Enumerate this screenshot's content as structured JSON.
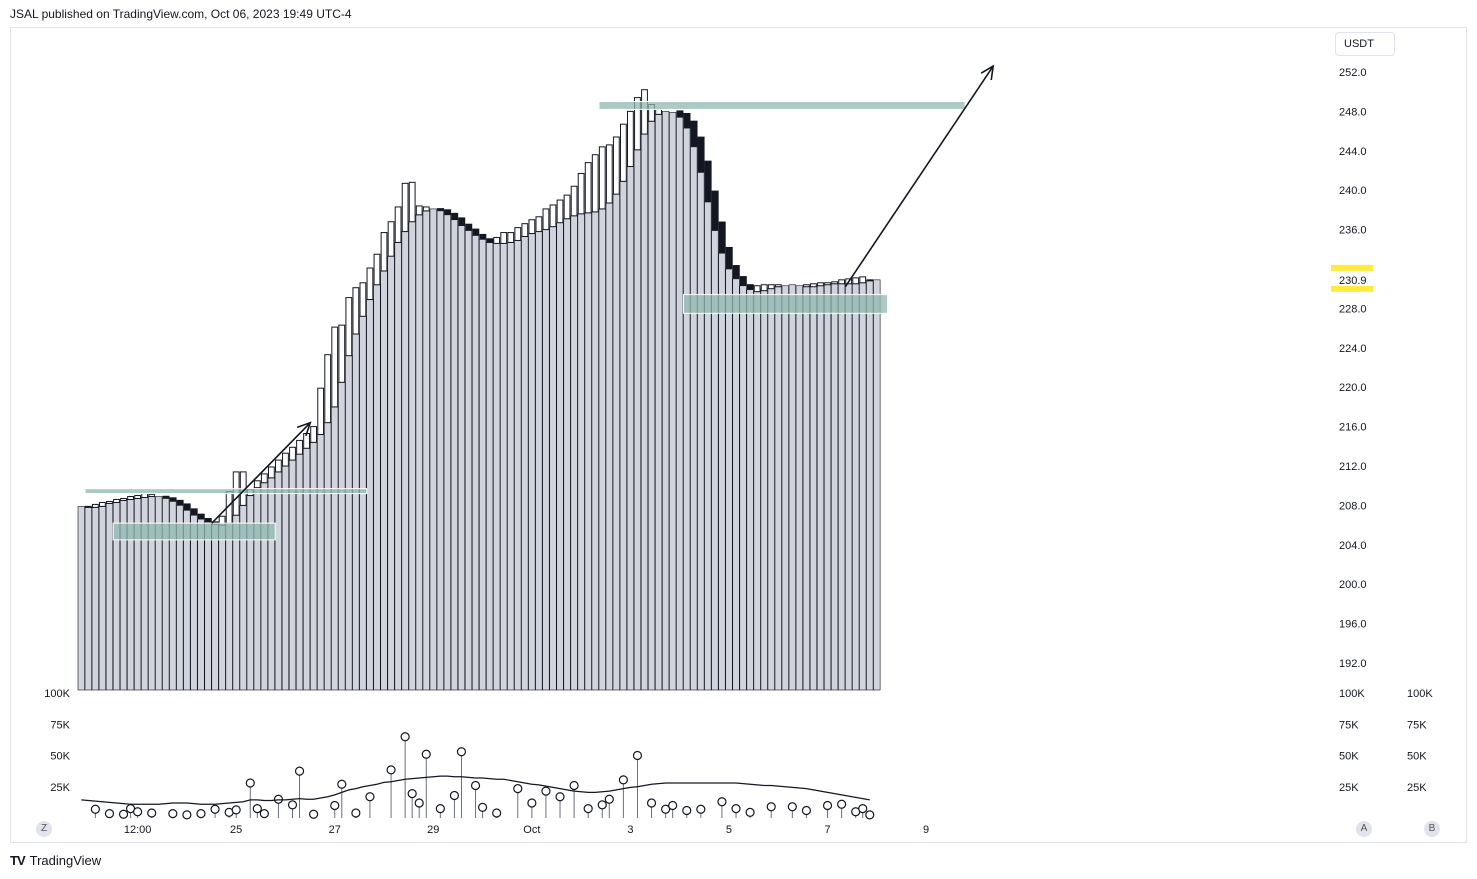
{
  "header": {
    "publish_text": "JSAL published on TradingView.com, Oct 06, 2023 19:49 UTC-4"
  },
  "footer": {
    "brand": "TradingView",
    "logo_text": "TV"
  },
  "scale": {
    "currency": "USDT",
    "btn_z": "Z",
    "btn_a": "A",
    "btn_b": "B"
  },
  "colors": {
    "column": "#d1d4dc",
    "hollow": "#ffffff",
    "outline": "#131722",
    "zone": "#8fb8b0",
    "highlight": "#ffeb3b",
    "line": "#131722"
  },
  "chart_data": {
    "type": "bar",
    "price_axis": {
      "ylim": [
        189.0,
        253.0
      ],
      "ticks": [
        252.0,
        248.0,
        244.0,
        240.0,
        236.0,
        232.0,
        228.0,
        224.0,
        220.0,
        216.0,
        212.0,
        208.0,
        204.0,
        200.0,
        196.0,
        192.0
      ],
      "tick_labels": [
        "252.0",
        "248.0",
        "244.0",
        "240.0",
        "236.0",
        "",
        "228.0",
        "224.0",
        "220.0",
        "216.0",
        "212.0",
        "208.0",
        "204.0",
        "200.0",
        "196.0",
        "192.0"
      ],
      "last_price_label": "230.9",
      "last_price": 230.9
    },
    "time_axis": {
      "labels": [
        "12:00",
        "25",
        "27",
        "29",
        "Oct",
        "3",
        "5",
        "7",
        "9"
      ],
      "label_bars": [
        8,
        22,
        36,
        50,
        64,
        78,
        92,
        106,
        120
      ]
    },
    "volume_axis": {
      "ylim": [
        0,
        100000
      ],
      "ticks": [
        25000,
        50000,
        75000,
        100000
      ],
      "tick_labels": [
        "25K",
        "50K",
        "75K",
        "100K"
      ]
    },
    "series": [
      {
        "values": [
          207.9,
          207.8,
          207.8,
          207.9,
          208.2,
          208.3,
          208.5,
          208.6,
          208.7,
          208.8,
          208.9,
          208.9,
          208.7,
          208.4,
          208.0,
          207.5,
          207.0,
          206.6,
          206.3,
          206.1,
          206.0,
          206.2,
          207.0,
          208.0,
          209.0,
          209.8,
          210.3,
          210.8,
          211.4,
          212.0,
          212.6,
          213.2,
          213.8,
          214.4,
          215.2,
          216.4,
          218.0,
          220.5,
          223.2,
          225.4,
          227.2,
          228.9,
          230.4,
          231.8,
          233.3,
          234.7,
          235.8,
          236.8,
          237.5,
          237.9,
          238.1,
          237.9,
          237.5,
          237.0,
          236.4,
          235.9,
          235.4,
          235.0,
          234.7,
          234.6,
          234.6,
          234.7,
          234.9,
          235.3,
          235.6,
          235.8,
          236.0,
          236.3,
          236.7,
          237.1,
          237.4,
          237.6,
          237.7,
          237.8,
          238.1,
          238.7,
          239.6,
          240.9,
          242.4,
          244.1,
          245.7,
          247.0,
          247.7,
          248.0,
          247.9,
          247.4,
          246.3,
          244.4,
          241.8,
          238.8,
          235.9,
          233.6,
          232.0,
          231.0,
          230.3,
          229.9,
          229.7,
          229.8,
          230.0,
          230.2,
          230.3,
          230.4,
          230.3,
          230.2,
          230.2,
          230.3,
          230.4,
          230.5,
          230.5,
          230.5,
          230.5,
          230.6,
          230.8,
          230.9
        ]
      },
      {
        "values": [
          207.9,
          207.8,
          208.0,
          208.1,
          208.3,
          208.5,
          208.6,
          208.8,
          208.9,
          209.1,
          209.0,
          208.9,
          208.5,
          208.0,
          207.2,
          206.8,
          206.4,
          206.1,
          205.9,
          205.8,
          206.1,
          207.2,
          209.3,
          211.4,
          209.6,
          210.2,
          210.9,
          211.6,
          212.3,
          212.9,
          213.6,
          214.3,
          214.9,
          215.6,
          219.9,
          223.3,
          226.1,
          226.3,
          229.1,
          230.1,
          230.6,
          231.5,
          232.5,
          234.1,
          236.1,
          236.8,
          238.9,
          240.7,
          238.4,
          238.3,
          237.6,
          237.0,
          236.5,
          235.8,
          235.4,
          235.0,
          234.8,
          234.5,
          234.3,
          234.7,
          235.4,
          235.5,
          235.6,
          236.2,
          236.6,
          237.0,
          237.3,
          238.1,
          238.5,
          239.0,
          239.5,
          240.4,
          241.7,
          242.8,
          243.6,
          243.4,
          244.4,
          245.4,
          246.7,
          248.0,
          249.4,
          248.7,
          248.2,
          247.9,
          246.8,
          244.6,
          241.8,
          238.9,
          235.9,
          233.6,
          231.9,
          230.8,
          230.1,
          229.6,
          229.4,
          229.8,
          230.1,
          230.2,
          230.3,
          230.4,
          230.2,
          230.1,
          230.3,
          230.4,
          230.5,
          230.6,
          230.6,
          230.7,
          230.9,
          231.0,
          231.0,
          231.1,
          230.9
        ]
      },
      {
        "values": [
          207.9,
          207.9,
          208.1,
          208.3,
          208.4,
          208.6,
          208.7,
          208.9,
          209.0,
          209.2,
          209.1,
          208.9,
          208.6,
          208.1,
          207.4,
          207.0,
          206.5,
          206.1,
          205.9,
          206.2,
          206.9,
          209.4,
          211.4,
          208.9,
          209.6,
          210.5,
          211.2,
          211.9,
          212.6,
          213.3,
          213.9,
          214.6,
          215.3,
          216.0,
          216.0,
          221.9,
          223.3,
          226.1,
          229.1,
          230.0,
          230.5,
          232.1,
          233.5,
          235.7,
          236.8,
          238.3,
          240.7,
          240.8,
          238.4,
          238.3,
          237.7,
          237.2,
          236.6,
          236.0,
          235.6,
          235.1,
          234.9,
          234.6,
          234.8,
          235.2,
          235.7,
          235.7,
          236.2,
          236.6,
          237.0,
          237.3,
          238.1,
          238.5,
          239.0,
          239.5,
          240.4,
          241.7,
          242.8,
          243.6,
          244.4,
          244.6,
          245.4,
          246.7,
          248.0,
          249.4,
          250.2,
          248.7,
          248.2,
          247.9,
          246.8,
          244.6,
          241.8,
          238.9,
          235.9,
          233.6,
          231.9,
          230.8,
          230.1,
          229.6,
          229.4,
          229.8,
          230.3,
          230.4,
          230.4,
          230.4,
          230.2,
          230.1,
          230.3,
          230.4,
          230.5,
          230.6,
          230.6,
          230.7,
          230.9,
          231.0,
          231.1,
          231.2,
          230.9
        ]
      },
      {
        "values": [
          4200,
          9000,
          7000,
          4000,
          3500,
          3500,
          3000,
          7500,
          5000,
          3000,
          4000,
          6000,
          4500,
          3000,
          4500,
          2000,
          3500,
          3000,
          5000,
          7000,
          5500,
          4500,
          6500,
          4000,
          30000,
          35000,
          6500,
          3500,
          4000,
          4000,
          10500,
          15000,
          4500,
          3000,
          6000,
          6000,
          9000,
          11000,
          12500,
          12000,
          10000,
          14500,
          18000,
          12000,
          8500,
          9000,
          12500,
          13000,
          11000,
          10000,
          11000,
          12500,
          6500,
          7500,
          9000,
          9000,
          8500,
          6500,
          7500,
          7000,
          10500,
          6000,
          8000,
          7500,
          9000,
          10000,
          11000,
          12500,
          12500,
          13000,
          13500,
          14500,
          14000,
          13500,
          12000,
          11000,
          14000,
          11000,
          11500,
          13000,
          11500,
          10500,
          13500,
          12000,
          10000,
          12000,
          15000,
          13500,
          14000,
          13500,
          12000,
          11000,
          14500,
          15500,
          14500,
          14000,
          12000,
          10500,
          12000,
          9500,
          11000,
          12500,
          11500,
          10500,
          14500,
          16000,
          15500,
          14500,
          13500,
          13500,
          13000,
          12000,
          11000
        ]
      },
      {
        "values": [
          4,
          8,
          5,
          3,
          2,
          3,
          6,
          3,
          4,
          2,
          6,
          6,
          4,
          6,
          4,
          4,
          5,
          6,
          7,
          5,
          5,
          6,
          4,
          6,
          28,
          4,
          3,
          35,
          5,
          4,
          14,
          8,
          12,
          2,
          26,
          5,
          12,
          20,
          12,
          14,
          16,
          32,
          19,
          46,
          32,
          32,
          58,
          28,
          14,
          18,
          8,
          8,
          14,
          48,
          43,
          57,
          55,
          51,
          62,
          13,
          24,
          69,
          50,
          48,
          14,
          16,
          16,
          7,
          10,
          14,
          3,
          9,
          12,
          12,
          11,
          12,
          10,
          17,
          21,
          26,
          7,
          10,
          11,
          12,
          10,
          10,
          13,
          11,
          12,
          12,
          11,
          11,
          12,
          14,
          12,
          14,
          12,
          13,
          12,
          12,
          10,
          10,
          11,
          16,
          14,
          15,
          10,
          10,
          13,
          14,
          9,
          11,
          8
        ]
      },
      {
        "values": [
          9,
          8,
          6,
          5,
          4,
          4,
          5,
          8,
          7,
          9,
          8,
          6,
          7,
          9,
          8,
          10,
          10,
          8,
          6,
          5,
          4,
          4,
          3,
          3,
          5,
          6,
          5,
          3,
          7,
          8,
          6,
          4,
          3,
          5,
          7,
          8,
          8,
          9,
          10,
          11,
          12,
          13,
          14,
          14,
          15,
          16,
          16,
          16,
          16,
          17,
          17,
          17,
          17,
          17,
          17,
          17,
          16,
          16,
          16,
          16,
          16,
          16,
          16,
          15,
          15,
          15,
          14,
          13,
          13,
          14,
          14,
          14,
          15,
          15,
          16,
          16,
          16,
          16,
          16,
          16,
          15,
          15,
          14,
          14,
          13,
          12,
          11,
          11,
          10,
          10,
          9,
          9,
          8,
          8,
          9,
          9,
          9,
          10,
          10,
          10,
          9,
          9,
          8,
          8,
          8,
          7,
          7,
          6,
          5,
          5,
          4,
          3,
          3
        ]
      }
    ],
    "volume_values": [
      4200,
      9000,
      7000,
      4000,
      3500,
      3500,
      3000,
      7500,
      5000,
      3000,
      4000,
      10500,
      8000,
      3500,
      6000,
      2500,
      2500,
      3500,
      5000,
      7000,
      6000,
      4500,
      6500,
      4500,
      28000,
      7500,
      3500,
      4000,
      15000,
      10000,
      10500,
      37500,
      4500,
      3000,
      12500,
      14000,
      10000,
      27000,
      6500,
      4000,
      9000,
      17000,
      19500,
      37000,
      38500,
      15000,
      65000,
      19500,
      12000,
      51000,
      16000,
      7500,
      13000,
      18000,
      53000,
      82500,
      26000,
      8500,
      12500,
      4000,
      7500,
      33500,
      23500,
      13000,
      12000,
      31500,
      21500,
      11000,
      17000,
      9000,
      26000,
      9000,
      7500,
      10500,
      10500,
      15000,
      20000,
      30500,
      44000,
      50000,
      88000,
      12000,
      8000,
      7000,
      10000,
      9000,
      6000,
      13000,
      7000,
      7500,
      6500,
      13000,
      15500,
      7500,
      13000,
      4500,
      3500,
      14500,
      9000,
      8000,
      4500,
      9000,
      14000,
      6000,
      9000,
      7000,
      10000,
      9500,
      11000,
      6000,
      5000,
      7500,
      2500
    ],
    "volume_ma": [
      14500,
      14000,
      13500,
      13000,
      12500,
      12000,
      11500,
      11000,
      11000,
      11000,
      11000,
      11000,
      11500,
      12000,
      12000,
      12000,
      11500,
      11000,
      11000,
      11000,
      11500,
      12000,
      12500,
      13000,
      14500,
      14500,
      14000,
      14000,
      14500,
      14500,
      15000,
      15500,
      15000,
      15000,
      16000,
      17000,
      18500,
      20500,
      22500,
      23500,
      25000,
      26000,
      27000,
      28500,
      29000,
      30000,
      31000,
      31500,
      32000,
      32500,
      33000,
      33500,
      33500,
      33000,
      33000,
      32500,
      32000,
      32000,
      31500,
      31000,
      31000,
      30000,
      29000,
      28000,
      27000,
      26500,
      25500,
      24500,
      23500,
      22500,
      21500,
      21000,
      20500,
      20500,
      21000,
      21500,
      22500,
      23500,
      24500,
      25000,
      26000,
      27000,
      27500,
      28000,
      28000,
      28000,
      28000,
      28000,
      28000,
      28000,
      28000,
      28000,
      28000,
      28000,
      27500,
      27000,
      26500,
      26000,
      26000,
      25500,
      25000,
      24500,
      24000,
      23500,
      22500,
      21500,
      20500,
      19500,
      18500,
      17500,
      16500,
      15500,
      14500
    ],
    "volume_markers": [
      2,
      4,
      6,
      7,
      8,
      10,
      13,
      15,
      17,
      19,
      21,
      22,
      24,
      25,
      26,
      28,
      30,
      31,
      33,
      36,
      37,
      39,
      41,
      44,
      46,
      47,
      48,
      49,
      51,
      53,
      54,
      56,
      57,
      59,
      62,
      64,
      66,
      68,
      70,
      72,
      74,
      75,
      77,
      79,
      81,
      83,
      84,
      86,
      88,
      91,
      93,
      95,
      98,
      101,
      103,
      106,
      108,
      110,
      111,
      112
    ],
    "zones": [
      {
        "bar_from": 1,
        "bar_to": 41,
        "price_top": 209.7,
        "price_bottom": 209.2
      },
      {
        "bar_from": 5,
        "bar_to": 28,
        "price_top": 206.2,
        "price_bottom": 204.5
      },
      {
        "bar_from": 74,
        "bar_to": 126,
        "price_top": 249.0,
        "price_bottom": 248.2
      },
      {
        "bar_from": 86,
        "bar_to": 115,
        "price_top": 229.4,
        "price_bottom": 227.5
      }
    ],
    "arrows": [
      {
        "bar_from": 19,
        "price_from": 206.2,
        "bar_to": 33,
        "price_to": 216.4
      },
      {
        "bar_from": 109,
        "price_from": 230.2,
        "bar_to": 130,
        "price_to": 252.6
      }
    ]
  }
}
